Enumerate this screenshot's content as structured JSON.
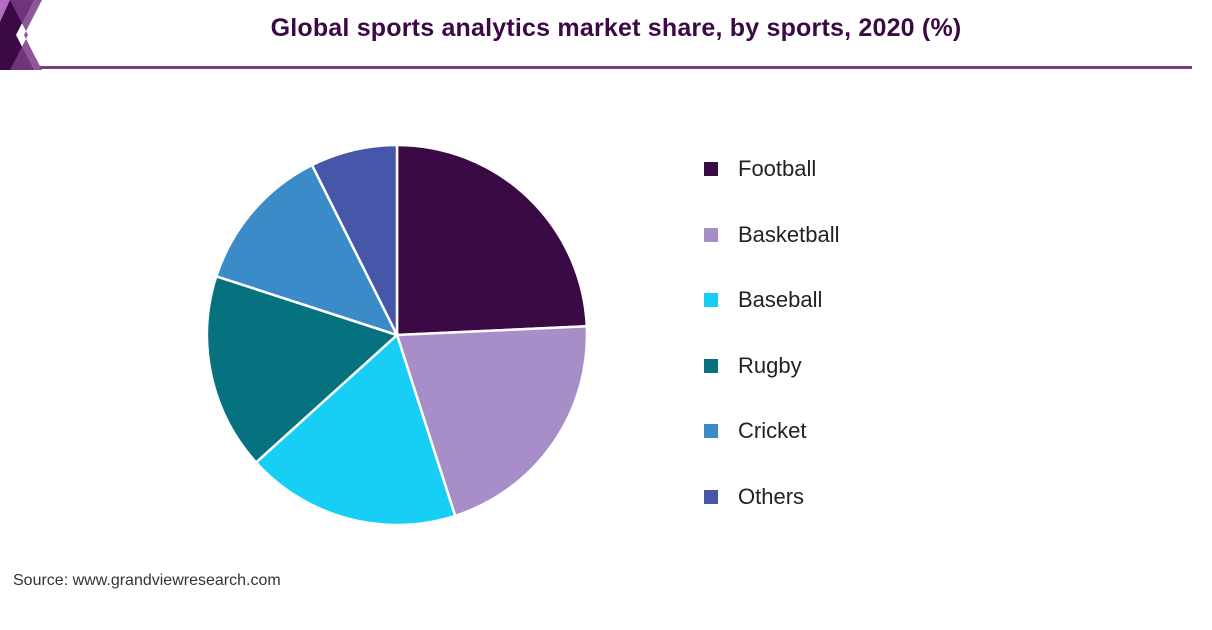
{
  "header": {
    "title": "Global sports analytics market share, by sports, 2020 (%)",
    "accent_color": "#3b0a45",
    "rule_color": "#7a3b86"
  },
  "chart_data": {
    "type": "pie",
    "title": "Global sports analytics market share, by sports, 2020 (%)",
    "categories": [
      "Football",
      "Basketball",
      "Baseball",
      "Rugby",
      "Cricket",
      "Others"
    ],
    "values": [
      25.0,
      21.4,
      18.8,
      17.2,
      13.0,
      7.6
    ],
    "colors": [
      "#3b0a45",
      "#a78ec9",
      "#17cff5",
      "#06727f",
      "#3b8bc9",
      "#4656a8"
    ],
    "start_angle_deg": 0,
    "direction": "clockwise",
    "legend_position": "right"
  },
  "footer": {
    "source": "Source: www.grandviewresearch.com"
  }
}
